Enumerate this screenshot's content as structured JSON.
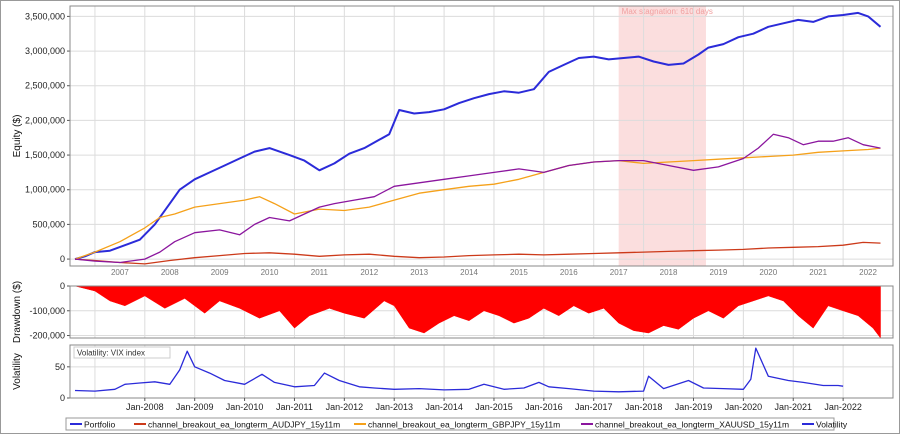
{
  "colors": {
    "portfolio": "#2b2bd9",
    "audjpy": "#cc3a1a",
    "gbpjpy": "#f5a11a",
    "xauusd": "#8b169e",
    "volatility": "#2b2bd9",
    "drawdown": "#ff0000",
    "stagnation": "#fbdede",
    "frame": "#888888",
    "grid": "#dcdcdc"
  },
  "chart_data": [
    {
      "type": "line",
      "panel": "equity",
      "ylabel": "Equity ($)",
      "ylim": [
        -100000,
        3650000
      ],
      "yticks": [
        0,
        500000,
        1000000,
        1500000,
        2000000,
        2500000,
        3000000,
        3500000
      ],
      "ytick_labels": [
        "0",
        "500,000",
        "1,000,000",
        "1,500,000",
        "2,000,000",
        "2,500,000",
        "3,000,000",
        "3,500,000"
      ],
      "xlim": [
        2006.5,
        2023.0
      ],
      "xticks": [
        2007,
        2008,
        2009,
        2010,
        2011,
        2012,
        2013,
        2014,
        2015,
        2016,
        2017,
        2018,
        2019,
        2020,
        2021,
        2022
      ],
      "xtick_labels": [
        "2007",
        "2008",
        "2009",
        "2010",
        "2011",
        "2012",
        "2013",
        "2014",
        "2015",
        "2016",
        "2017",
        "2018",
        "2019",
        "2020",
        "2021",
        "2022"
      ],
      "grid": true,
      "annotation": {
        "text": "Max stagnation: 610 days",
        "x_start": 2017.5,
        "x_end": 2019.25
      },
      "series": [
        {
          "name": "Portfolio",
          "color_key": "portfolio",
          "x": [
            2006.6,
            2006.8,
            2007.0,
            2007.3,
            2007.6,
            2007.9,
            2008.2,
            2008.5,
            2008.7,
            2009.0,
            2009.3,
            2009.6,
            2009.9,
            2010.2,
            2010.5,
            2010.9,
            2011.2,
            2011.5,
            2011.8,
            2012.1,
            2012.4,
            2012.7,
            2012.9,
            2013.1,
            2013.4,
            2013.7,
            2014.0,
            2014.3,
            2014.6,
            2014.9,
            2015.2,
            2015.5,
            2015.8,
            2016.1,
            2016.4,
            2016.7,
            2017.0,
            2017.3,
            2017.6,
            2017.9,
            2018.2,
            2018.5,
            2018.8,
            2019.1,
            2019.3,
            2019.6,
            2019.9,
            2020.2,
            2020.5,
            2020.8,
            2021.1,
            2021.4,
            2021.7,
            2022.0,
            2022.3,
            2022.5,
            2022.75
          ],
          "values": [
            0,
            40000,
            100000,
            120000,
            200000,
            280000,
            500000,
            800000,
            1000000,
            1150000,
            1250000,
            1350000,
            1450000,
            1550000,
            1600000,
            1500000,
            1420000,
            1280000,
            1380000,
            1520000,
            1600000,
            1720000,
            1800000,
            2150000,
            2100000,
            2120000,
            2160000,
            2250000,
            2320000,
            2380000,
            2420000,
            2400000,
            2450000,
            2700000,
            2800000,
            2900000,
            2920000,
            2880000,
            2900000,
            2920000,
            2850000,
            2800000,
            2820000,
            2950000,
            3050000,
            3100000,
            3200000,
            3250000,
            3350000,
            3400000,
            3450000,
            3420000,
            3500000,
            3520000,
            3550000,
            3500000,
            3350000
          ]
        },
        {
          "name": "channel_breakout_ea_longterm_AUDJPY_15y11m",
          "color_key": "audjpy",
          "x": [
            2006.6,
            2007.0,
            2007.5,
            2008.0,
            2008.5,
            2009.0,
            2009.5,
            2010.0,
            2010.5,
            2011.0,
            2011.5,
            2012.0,
            2012.5,
            2013.0,
            2013.5,
            2014.0,
            2014.5,
            2015.0,
            2015.5,
            2016.0,
            2016.5,
            2017.0,
            2017.5,
            2018.0,
            2018.5,
            2019.0,
            2019.5,
            2020.0,
            2020.5,
            2021.0,
            2021.5,
            2022.0,
            2022.4,
            2022.75
          ],
          "values": [
            0,
            -20000,
            -50000,
            -70000,
            -20000,
            20000,
            50000,
            80000,
            90000,
            70000,
            40000,
            60000,
            70000,
            40000,
            20000,
            30000,
            50000,
            60000,
            70000,
            60000,
            70000,
            80000,
            90000,
            100000,
            110000,
            120000,
            130000,
            140000,
            160000,
            170000,
            180000,
            200000,
            240000,
            230000
          ]
        },
        {
          "name": "channel_breakout_ea_longterm_GBPJPY_15y11m",
          "color_key": "gbpjpy",
          "x": [
            2006.6,
            2007.0,
            2007.5,
            2008.0,
            2008.3,
            2008.6,
            2009.0,
            2009.5,
            2010.0,
            2010.3,
            2010.6,
            2011.0,
            2011.5,
            2012.0,
            2012.5,
            2013.0,
            2013.5,
            2014.0,
            2014.5,
            2015.0,
            2015.5,
            2016.0,
            2016.5,
            2017.0,
            2017.5,
            2018.0,
            2018.5,
            2019.0,
            2019.5,
            2020.0,
            2020.5,
            2021.0,
            2021.5,
            2022.0,
            2022.5,
            2022.75
          ],
          "values": [
            0,
            100000,
            250000,
            450000,
            600000,
            650000,
            750000,
            800000,
            850000,
            900000,
            800000,
            650000,
            720000,
            700000,
            750000,
            850000,
            950000,
            1000000,
            1050000,
            1080000,
            1150000,
            1250000,
            1350000,
            1400000,
            1420000,
            1380000,
            1400000,
            1420000,
            1440000,
            1460000,
            1480000,
            1500000,
            1540000,
            1560000,
            1580000,
            1600000
          ]
        },
        {
          "name": "channel_breakout_ea_longterm_XAUUSD_15y11m",
          "color_key": "xauusd",
          "x": [
            2006.6,
            2007.0,
            2007.5,
            2008.0,
            2008.3,
            2008.6,
            2009.0,
            2009.5,
            2009.9,
            2010.2,
            2010.5,
            2010.9,
            2011.2,
            2011.5,
            2011.8,
            2012.2,
            2012.6,
            2013.0,
            2013.5,
            2014.0,
            2014.5,
            2015.0,
            2015.5,
            2016.0,
            2016.5,
            2017.0,
            2017.5,
            2018.0,
            2018.5,
            2019.0,
            2019.5,
            2020.0,
            2020.3,
            2020.6,
            2020.9,
            2021.2,
            2021.5,
            2021.8,
            2022.1,
            2022.4,
            2022.75
          ],
          "values": [
            0,
            -30000,
            -50000,
            0,
            100000,
            250000,
            380000,
            420000,
            350000,
            500000,
            600000,
            550000,
            650000,
            750000,
            800000,
            850000,
            900000,
            1050000,
            1100000,
            1150000,
            1200000,
            1250000,
            1300000,
            1250000,
            1350000,
            1400000,
            1420000,
            1420000,
            1350000,
            1280000,
            1330000,
            1450000,
            1600000,
            1800000,
            1750000,
            1650000,
            1700000,
            1700000,
            1750000,
            1650000,
            1600000
          ]
        }
      ]
    },
    {
      "type": "area",
      "panel": "drawdown",
      "ylabel": "Drawdown ($)",
      "ylim": [
        -210000,
        0
      ],
      "yticks": [
        0,
        -100000,
        -200000
      ],
      "ytick_labels": [
        "0",
        "-100,000",
        "-200,000"
      ],
      "xlim": [
        2006.5,
        2023.0
      ],
      "grid": true,
      "series": [
        {
          "name": "Drawdown",
          "color_key": "drawdown",
          "x": [
            2006.6,
            2007.0,
            2007.3,
            2007.6,
            2008.0,
            2008.4,
            2008.8,
            2009.2,
            2009.5,
            2009.9,
            2010.3,
            2010.7,
            2011.0,
            2011.3,
            2011.7,
            2012.0,
            2012.4,
            2012.8,
            2013.0,
            2013.3,
            2013.6,
            2013.9,
            2014.2,
            2014.5,
            2014.8,
            2015.1,
            2015.4,
            2015.7,
            2016.0,
            2016.3,
            2016.6,
            2016.9,
            2017.2,
            2017.5,
            2017.8,
            2018.1,
            2018.4,
            2018.7,
            2019.0,
            2019.3,
            2019.6,
            2019.9,
            2020.2,
            2020.5,
            2020.8,
            2021.1,
            2021.4,
            2021.7,
            2022.0,
            2022.3,
            2022.6,
            2022.75
          ],
          "values": [
            0,
            -20000,
            -60000,
            -80000,
            -40000,
            -90000,
            -50000,
            -110000,
            -60000,
            -90000,
            -130000,
            -100000,
            -170000,
            -120000,
            -90000,
            -110000,
            -130000,
            -60000,
            -80000,
            -170000,
            -190000,
            -150000,
            -120000,
            -140000,
            -100000,
            -120000,
            -150000,
            -130000,
            -90000,
            -120000,
            -80000,
            -110000,
            -90000,
            -150000,
            -180000,
            -190000,
            -160000,
            -175000,
            -130000,
            -100000,
            -130000,
            -80000,
            -60000,
            -40000,
            -60000,
            -120000,
            -170000,
            -80000,
            -100000,
            -120000,
            -170000,
            -210000
          ]
        }
      ]
    },
    {
      "type": "line",
      "panel": "volatility",
      "ylabel": "Volatility",
      "annotation": {
        "text": "Volatility: VIX index"
      },
      "ylim": [
        0,
        85
      ],
      "yticks": [
        0,
        50
      ],
      "ytick_labels": [
        "0",
        "50"
      ],
      "xlim": [
        2006.5,
        2023.0
      ],
      "xticks": [
        2008,
        2009,
        2010,
        2011,
        2012,
        2013,
        2014,
        2015,
        2016,
        2017,
        2018,
        2019,
        2020,
        2021,
        2022
      ],
      "xtick_labels": [
        "Jan-2008",
        "Jan-2009",
        "Jan-2010",
        "Jan-2011",
        "Jan-2012",
        "Jan-2013",
        "Jan-2014",
        "Jan-2015",
        "Jan-2016",
        "Jan-2017",
        "Jan-2018",
        "Jan-2019",
        "Jan-2020",
        "Jan-2021",
        "Jan-2022"
      ],
      "grid": true,
      "series": [
        {
          "name": "Volatility",
          "color_key": "volatility",
          "x": [
            2006.6,
            2007.0,
            2007.4,
            2007.6,
            2007.9,
            2008.2,
            2008.5,
            2008.7,
            2008.85,
            2009.0,
            2009.3,
            2009.6,
            2010.0,
            2010.35,
            2010.6,
            2011.0,
            2011.4,
            2011.6,
            2011.9,
            2012.3,
            2012.6,
            2013.0,
            2013.5,
            2014.0,
            2014.5,
            2014.8,
            2015.2,
            2015.6,
            2015.9,
            2016.1,
            2016.5,
            2017.0,
            2017.5,
            2018.0,
            2018.1,
            2018.4,
            2018.9,
            2019.2,
            2019.6,
            2020.0,
            2020.15,
            2020.25,
            2020.5,
            2020.9,
            2021.2,
            2021.6,
            2021.9,
            2022.0
          ],
          "values": [
            12,
            11,
            14,
            22,
            24,
            26,
            22,
            45,
            75,
            50,
            40,
            28,
            22,
            38,
            25,
            18,
            20,
            40,
            28,
            18,
            16,
            14,
            15,
            13,
            14,
            22,
            14,
            16,
            25,
            18,
            15,
            11,
            10,
            11,
            35,
            15,
            28,
            16,
            15,
            14,
            30,
            80,
            35,
            28,
            25,
            20,
            20,
            19
          ]
        }
      ]
    }
  ],
  "legend": {
    "items": [
      {
        "label": "Portfolio",
        "color_key": "portfolio"
      },
      {
        "label": "channel_breakout_ea_longterm_AUDJPY_15y11m",
        "color_key": "audjpy"
      },
      {
        "label": "channel_breakout_ea_longterm_GBPJPY_15y11m",
        "color_key": "gbpjpy"
      },
      {
        "label": "channel_breakout_ea_longterm_XAUUSD_15y11m",
        "color_key": "xauusd"
      },
      {
        "label": "Volatility",
        "color_key": "volatility"
      }
    ]
  }
}
